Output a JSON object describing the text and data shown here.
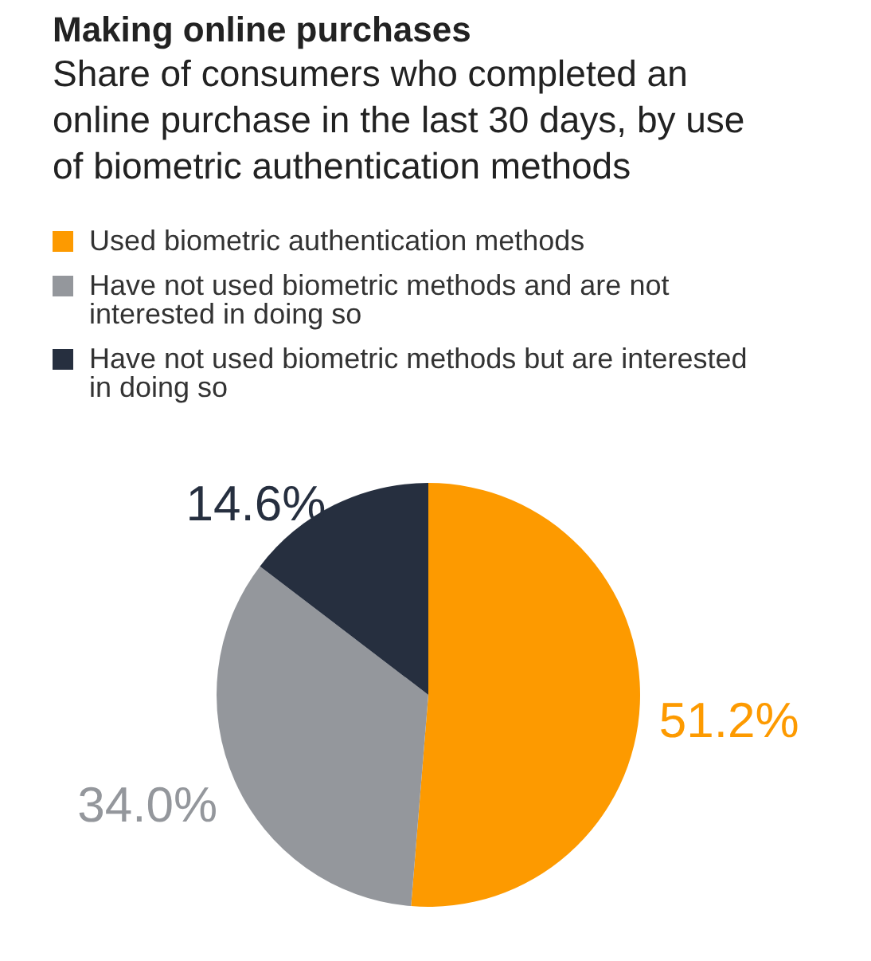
{
  "chart_data": {
    "type": "pie",
    "title": "Making online purchases",
    "subtitle": "Share of consumers who completed an online purchase in the last 30 days, by use of biometric authentication methods",
    "categories": [
      "Used biometric authentication methods",
      "Have not used biometric methods and are not interested in doing so",
      "Have not used biometric methods but are interested in doing so"
    ],
    "values": [
      51.2,
      34.0,
      14.6
    ],
    "colors": [
      "#fd9a00",
      "#94979c",
      "#262f3f"
    ],
    "value_labels": [
      "51.2%",
      "34.0%",
      "14.6%"
    ],
    "legend": "top left"
  }
}
